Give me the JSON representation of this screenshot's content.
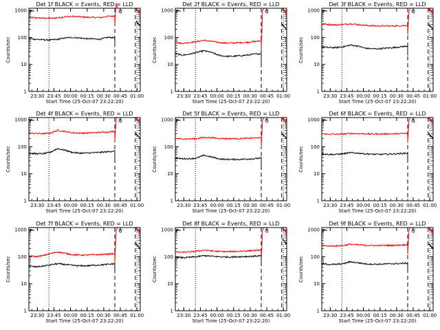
{
  "chart_data": {
    "type": "line",
    "layout": "3x3 grid",
    "xlabel": "Start Time (25-Oct-07 23:22:20)",
    "ylabel": "Counts/sec",
    "x_ticks": [
      "23:30",
      "23:45",
      "00:00",
      "00:15",
      "00:30",
      "00:45",
      "01:00"
    ],
    "x_range": [
      "23:22:20",
      "01:03:00"
    ],
    "y_scale": "log",
    "y_ticks": [
      "1",
      "10",
      "100",
      "1000"
    ],
    "y_range": [
      1,
      1200
    ],
    "grid": false,
    "vertical_markers": {
      "dotted": [
        "23:40:30",
        "01:00:00"
      ],
      "dashed": [
        "00:40:00",
        "00:58:30"
      ]
    },
    "top_right_marker": "Q",
    "colors": {
      "events": "#000000",
      "lld": "#ff0000"
    },
    "panels": [
      {
        "title": "Det 1f BLACK = Events, RED = LLD",
        "events": [
          90,
          85,
          82,
          80,
          85,
          95,
          100,
          96,
          90,
          88,
          86,
          100,
          98
        ],
        "lld": [
          550,
          530,
          520,
          510,
          530,
          580,
          600,
          580,
          560,
          550,
          545,
          600,
          620
        ]
      },
      {
        "title": "Det 2f BLACK = Events, RED = LLD",
        "events": [
          25,
          22,
          24,
          28,
          32,
          28,
          22,
          20,
          20,
          21,
          22,
          24,
          25
        ],
        "lld": [
          65,
          60,
          65,
          70,
          78,
          72,
          65,
          62,
          62,
          64,
          66,
          70,
          75
        ]
      },
      {
        "title": "Det 3f BLACK = Events, RED = LLD",
        "events": [
          45,
          42,
          42,
          45,
          52,
          48,
          40,
          38,
          38,
          40,
          42,
          45,
          48
        ],
        "lld": [
          320,
          300,
          290,
          300,
          320,
          300,
          280,
          270,
          265,
          265,
          265,
          270,
          280
        ]
      },
      {
        "title": "Det 4f BLACK = Events, RED = LLD",
        "events": [
          58,
          55,
          55,
          62,
          85,
          75,
          62,
          58,
          58,
          60,
          62,
          65,
          70
        ],
        "lld": [
          320,
          310,
          305,
          320,
          400,
          370,
          330,
          320,
          320,
          330,
          340,
          350,
          370
        ]
      },
      {
        "title": "Det 5f BLACK = Events, RED = LLD",
        "events": [
          38,
          36,
          36,
          38,
          48,
          42,
          36,
          34,
          34,
          34,
          35,
          36,
          38
        ],
        "lld": [
          200,
          195,
          195,
          200,
          220,
          215,
          205,
          200,
          200,
          200,
          205,
          210,
          215
        ]
      },
      {
        "title": "Det 6f BLACK = Events, RED = LLD",
        "events": [
          55,
          52,
          52,
          55,
          60,
          58,
          55,
          53,
          52,
          53,
          54,
          56,
          58
        ],
        "lld": [
          300,
          290,
          290,
          295,
          310,
          305,
          300,
          295,
          295,
          298,
          300,
          305,
          310
        ]
      },
      {
        "title": "Det 7f BLACK = Events, RED = LLD",
        "events": [
          45,
          42,
          45,
          50,
          55,
          52,
          48,
          46,
          46,
          48,
          50,
          52,
          55
        ],
        "lld": [
          110,
          100,
          110,
          130,
          150,
          135,
          120,
          115,
          115,
          118,
          120,
          125,
          130
        ]
      },
      {
        "title": "Det 8f BLACK = Events, RED = LLD",
        "events": [
          95,
          92,
          95,
          100,
          110,
          105,
          100,
          98,
          98,
          100,
          102,
          105,
          110
        ],
        "lld": [
          150,
          145,
          150,
          160,
          175,
          165,
          158,
          155,
          155,
          160,
          165,
          170,
          175
        ]
      },
      {
        "title": "Det 9f BLACK = Events, RED = LLD",
        "events": [
          55,
          52,
          52,
          55,
          65,
          60,
          55,
          53,
          53,
          54,
          55,
          56,
          58
        ],
        "lld": [
          260,
          250,
          250,
          260,
          290,
          275,
          265,
          260,
          260,
          262,
          265,
          270,
          280
        ]
      }
    ]
  }
}
